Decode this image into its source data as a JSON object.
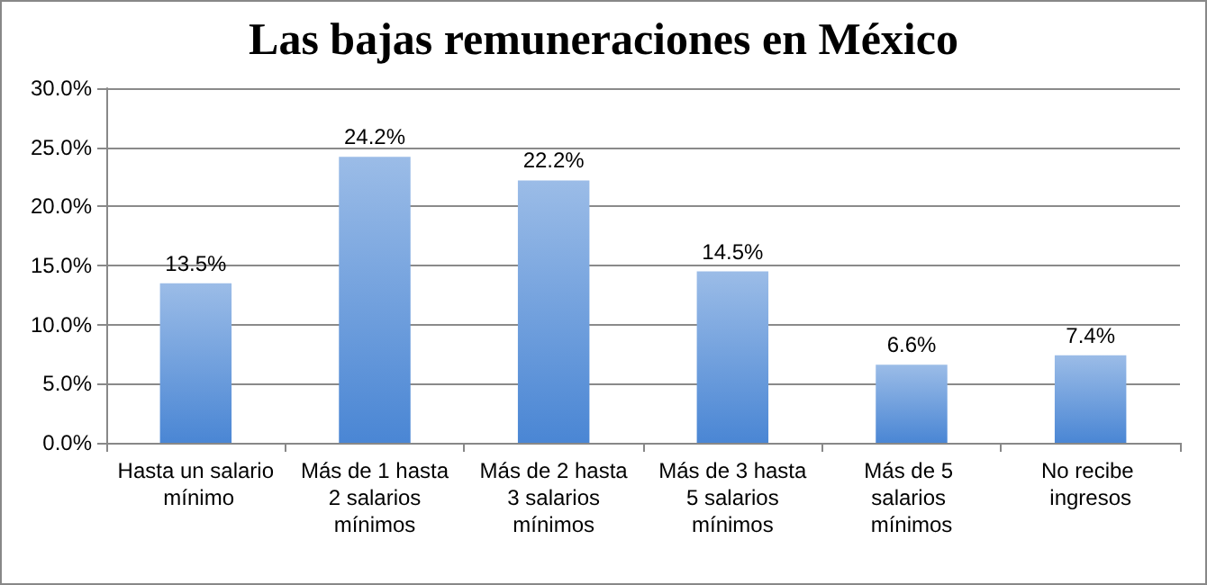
{
  "chart_data": {
    "type": "bar",
    "title": "Las bajas remuneraciones en México",
    "categories": [
      "Hasta un salario mínimo",
      "Más de 1 hasta 2 salarios mínimos",
      "Más de 2 hasta 3 salarios mínimos",
      "Más de 3 hasta 5 salarios mínimos",
      "Más de 5 salarios mínimos",
      "No recibe ingresos"
    ],
    "values": [
      13.5,
      24.2,
      22.2,
      14.5,
      6.6,
      7.4
    ],
    "color": "#4a86d4",
    "ylim": [
      0,
      30
    ],
    "yticks": [
      {
        "value": 0,
        "label": "0.0%"
      },
      {
        "value": 5,
        "label": "5.0%"
      },
      {
        "value": 10,
        "label": "10.0%"
      },
      {
        "value": 15,
        "label": "15.0%"
      },
      {
        "value": 20,
        "label": "20.0%"
      },
      {
        "value": 25,
        "label": "25.0%"
      },
      {
        "value": 30,
        "label": "30.0%"
      }
    ],
    "value_labels": [
      "13.5%",
      "24.2%",
      "22.2%",
      "14.5%",
      "6.6%",
      "7.4%"
    ],
    "grid": "y"
  }
}
